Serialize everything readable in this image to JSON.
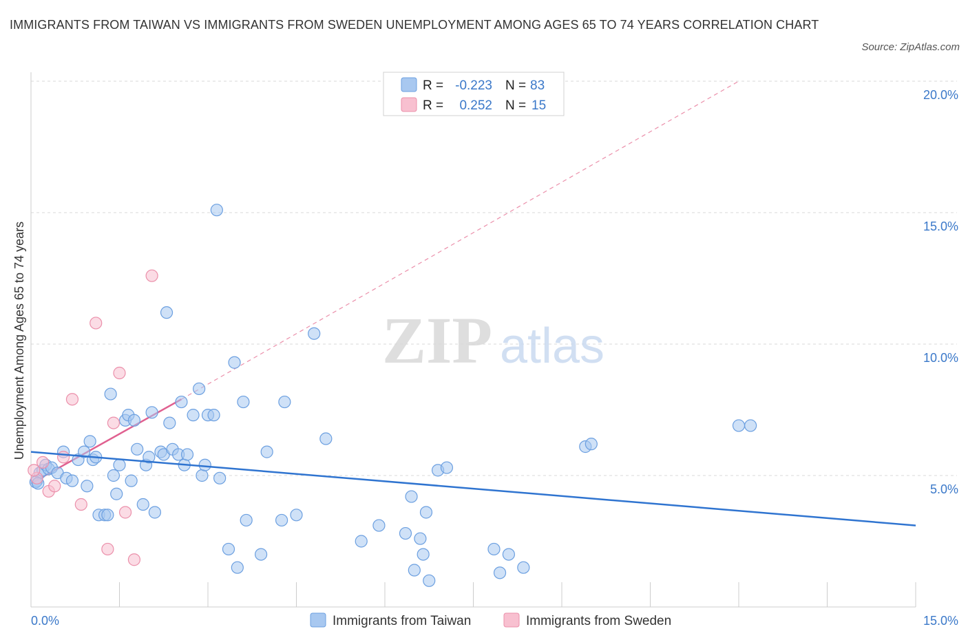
{
  "title": "IMMIGRANTS FROM TAIWAN VS IMMIGRANTS FROM SWEDEN UNEMPLOYMENT AMONG AGES 65 TO 74 YEARS CORRELATION CHART",
  "source": "Source: ZipAtlas.com",
  "watermark": {
    "zip": "ZIP",
    "atlas": "atlas"
  },
  "colors": {
    "taiwan_fill": "#a8c8f0",
    "taiwan_stroke": "#6b9fe0",
    "taiwan_line": "#2f74d0",
    "sweden_fill": "#f8c0d0",
    "sweden_stroke": "#eb8faa",
    "sweden_line": "#e06090",
    "grid": "#d8d8d8",
    "tick_text": "#3a78c9"
  },
  "legend": {
    "rows": [
      {
        "r_label": "R =",
        "r_value": "-0.223",
        "n_label": "N =",
        "n_value": "83"
      },
      {
        "r_label": "R =",
        "r_value": "0.252",
        "n_label": "N =",
        "n_value": "15"
      }
    ]
  },
  "chart_data": {
    "type": "scatter",
    "title": "IMMIGRANTS FROM TAIWAN VS IMMIGRANTS FROM SWEDEN UNEMPLOYMENT AMONG AGES 65 TO 74 YEARS CORRELATION CHART",
    "xlabel": "",
    "ylabel": "Unemployment Among Ages 65 to 74 years",
    "xlim": [
      0,
      15
    ],
    "ylim": [
      0,
      20
    ],
    "x_tick_labels": [
      "0.0%",
      "15.0%"
    ],
    "y_tick_labels": [
      "5.0%",
      "10.0%",
      "15.0%",
      "20.0%"
    ],
    "y_ticks": [
      5,
      10,
      15,
      20
    ],
    "series": [
      {
        "name": "Immigrants from Taiwan",
        "r": -0.223,
        "n": 83,
        "trend": {
          "x": [
            0,
            15
          ],
          "y": [
            5.9,
            3.1
          ]
        },
        "points": [
          [
            0.1,
            4.8
          ],
          [
            0.15,
            5.1
          ],
          [
            0.2,
            5.2
          ],
          [
            0.25,
            5.4
          ],
          [
            0.3,
            5.25
          ],
          [
            0.35,
            5.3
          ],
          [
            0.45,
            5.1
          ],
          [
            0.55,
            5.9
          ],
          [
            0.6,
            4.9
          ],
          [
            0.7,
            4.8
          ],
          [
            0.8,
            5.6
          ],
          [
            0.9,
            5.9
          ],
          [
            0.95,
            4.6
          ],
          [
            1.0,
            6.3
          ],
          [
            1.05,
            5.6
          ],
          [
            1.1,
            5.7
          ],
          [
            1.15,
            3.5
          ],
          [
            1.25,
            3.5
          ],
          [
            1.3,
            3.5
          ],
          [
            1.35,
            8.1
          ],
          [
            1.4,
            5.0
          ],
          [
            1.45,
            4.3
          ],
          [
            1.5,
            5.4
          ],
          [
            1.6,
            7.1
          ],
          [
            1.65,
            7.3
          ],
          [
            1.7,
            4.8
          ],
          [
            1.75,
            7.1
          ],
          [
            1.8,
            6.0
          ],
          [
            1.9,
            3.9
          ],
          [
            1.95,
            5.4
          ],
          [
            2.0,
            5.7
          ],
          [
            2.05,
            7.4
          ],
          [
            2.1,
            3.6
          ],
          [
            2.2,
            5.9
          ],
          [
            2.25,
            5.8
          ],
          [
            2.3,
            11.2
          ],
          [
            2.35,
            7.0
          ],
          [
            2.4,
            6.0
          ],
          [
            2.5,
            5.8
          ],
          [
            2.55,
            7.8
          ],
          [
            2.6,
            5.4
          ],
          [
            2.65,
            5.8
          ],
          [
            2.75,
            7.3
          ],
          [
            2.85,
            8.3
          ],
          [
            2.9,
            5.0
          ],
          [
            2.95,
            5.4
          ],
          [
            3.0,
            7.3
          ],
          [
            3.1,
            7.3
          ],
          [
            3.15,
            15.1
          ],
          [
            3.2,
            4.9
          ],
          [
            3.35,
            2.2
          ],
          [
            3.45,
            9.3
          ],
          [
            3.5,
            1.5
          ],
          [
            3.6,
            7.8
          ],
          [
            3.65,
            3.3
          ],
          [
            3.9,
            2.0
          ],
          [
            4.0,
            5.9
          ],
          [
            4.25,
            3.3
          ],
          [
            4.3,
            7.8
          ],
          [
            4.5,
            3.5
          ],
          [
            4.8,
            10.4
          ],
          [
            5.0,
            6.4
          ],
          [
            5.6,
            2.5
          ],
          [
            5.9,
            3.1
          ],
          [
            6.35,
            2.8
          ],
          [
            6.45,
            4.2
          ],
          [
            6.5,
            1.4
          ],
          [
            6.6,
            2.6
          ],
          [
            6.65,
            2.0
          ],
          [
            6.7,
            3.6
          ],
          [
            6.75,
            1.0
          ],
          [
            6.9,
            5.2
          ],
          [
            7.05,
            5.3
          ],
          [
            7.85,
            2.2
          ],
          [
            7.95,
            1.3
          ],
          [
            8.1,
            2.0
          ],
          [
            8.35,
            1.5
          ],
          [
            9.4,
            6.1
          ],
          [
            9.5,
            6.2
          ],
          [
            12.0,
            6.9
          ],
          [
            12.2,
            6.9
          ],
          [
            0.08,
            4.75
          ],
          [
            0.12,
            4.7
          ]
        ]
      },
      {
        "name": "Immigrants from Sweden",
        "r": 0.252,
        "n": 15,
        "trend": {
          "x": [
            0,
            2.55
          ],
          "y": [
            4.7,
            7.9
          ]
        },
        "trend_extension": {
          "x": [
            2.55,
            12.0
          ],
          "y": [
            7.9,
            20.0
          ]
        },
        "points": [
          [
            0.1,
            4.9
          ],
          [
            0.2,
            5.5
          ],
          [
            0.3,
            4.4
          ],
          [
            0.4,
            4.6
          ],
          [
            0.55,
            5.7
          ],
          [
            0.7,
            7.9
          ],
          [
            0.85,
            3.9
          ],
          [
            1.1,
            10.8
          ],
          [
            1.3,
            2.2
          ],
          [
            1.4,
            7.0
          ],
          [
            1.5,
            8.9
          ],
          [
            1.6,
            3.6
          ],
          [
            1.75,
            1.8
          ],
          [
            2.05,
            12.6
          ],
          [
            0.05,
            5.2
          ]
        ]
      }
    ]
  },
  "bottom_legend": {
    "items": [
      {
        "label": "Immigrants from Taiwan"
      },
      {
        "label": "Immigrants from Sweden"
      }
    ]
  }
}
